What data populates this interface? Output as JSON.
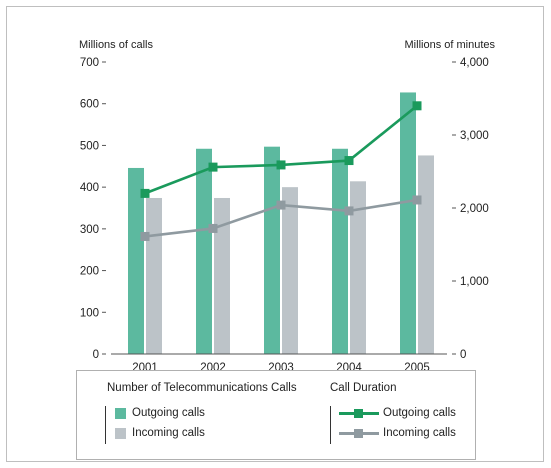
{
  "chart_data": {
    "type": "bar",
    "categories": [
      "2001",
      "2002",
      "2003",
      "2004",
      "2005"
    ],
    "left_axis": {
      "label": "Millions of calls",
      "ylim": [
        0,
        700
      ],
      "ticks": [
        "0",
        "100",
        "200",
        "300",
        "400",
        "500",
        "600",
        "700"
      ]
    },
    "right_axis": {
      "label": "Millions of minutes",
      "ylim": [
        0,
        4000
      ],
      "ticks": [
        "0",
        "1,000",
        "2,000",
        "3,000",
        "4,000"
      ]
    },
    "bar_series": [
      {
        "name": "Outgoing calls",
        "values": [
          446,
          492,
          497,
          492,
          627
        ],
        "color": "#5cb99f"
      },
      {
        "name": "Incoming calls",
        "values": [
          374,
          374,
          400,
          414,
          476
        ],
        "color": "#bcc3c8"
      }
    ],
    "line_series": [
      {
        "name": "Outgoing calls",
        "values": [
          2200,
          2560,
          2590,
          2650,
          3400
        ],
        "color": "#1a9a5c",
        "axis": "right"
      },
      {
        "name": "Incoming calls",
        "values": [
          1610,
          1720,
          2040,
          1960,
          2110
        ],
        "color": "#8f9aa0",
        "axis": "right"
      }
    ],
    "grid": false
  },
  "legend": {
    "bars_title": "Number of Telecommunications Calls",
    "lines_title": "Call Duration",
    "bar_items": [
      "Outgoing calls",
      "Incoming calls"
    ],
    "line_items": [
      "Outgoing calls",
      "Incoming calls"
    ]
  }
}
